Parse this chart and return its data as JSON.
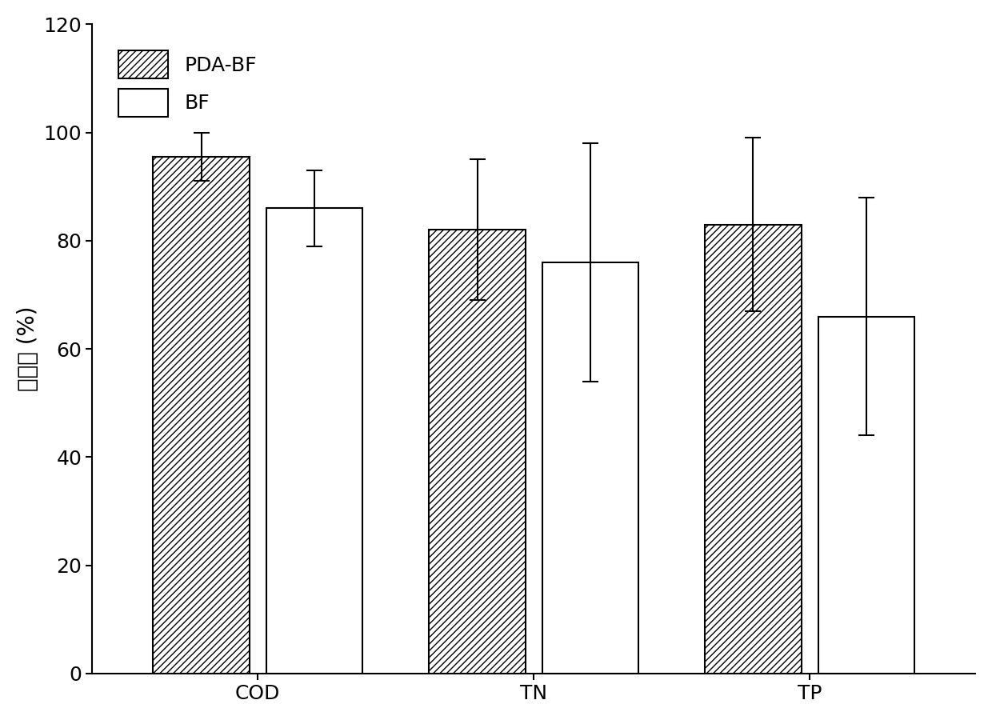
{
  "categories": [
    "COD",
    "TN",
    "TP"
  ],
  "pda_bf_values": [
    95.5,
    82.0,
    83.0
  ],
  "bf_values": [
    86.0,
    76.0,
    66.0
  ],
  "pda_bf_errors": [
    4.5,
    13.0,
    16.0
  ],
  "bf_errors": [
    7.0,
    22.0,
    22.0
  ],
  "ylabel": "去除率 (%)",
  "ylim": [
    0,
    120
  ],
  "yticks": [
    0,
    20,
    40,
    60,
    80,
    100,
    120
  ],
  "legend_labels": [
    "PDA-BF",
    "BF"
  ],
  "bar_width": 0.35,
  "hatch_pattern": "////",
  "pda_bf_color": "white",
  "bf_color": "white",
  "edge_color": "black",
  "label_fontsize": 20,
  "tick_fontsize": 18,
  "legend_fontsize": 18
}
